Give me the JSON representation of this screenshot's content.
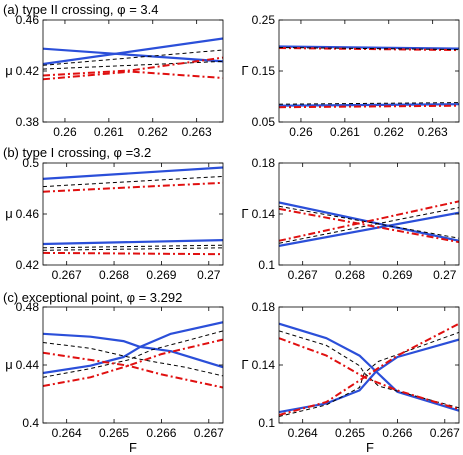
{
  "chart_data": [
    {
      "type": "line",
      "title": "(a) type II crossing, φ = 3.4",
      "xlabel": "",
      "ylabel": "μ",
      "xlim": [
        0.2595,
        0.2636
      ],
      "ylim": [
        0.38,
        0.46
      ],
      "xticks": [
        0.26,
        0.261,
        0.262,
        0.263
      ],
      "xtick_labels": [
        "0.26",
        "0.261",
        "0.262",
        "0.263"
      ],
      "yticks": [
        0.38,
        0.42,
        0.46
      ],
      "ytick_labels": [
        "0.38",
        "0.42",
        "0.46"
      ],
      "series": [
        {
          "style": "blue",
          "x": [
            0.2595,
            0.2636
          ],
          "y": [
            0.4375,
            0.4275
          ]
        },
        {
          "style": "blue",
          "x": [
            0.2595,
            0.2636
          ],
          "y": [
            0.4255,
            0.4455
          ]
        },
        {
          "style": "dash",
          "x": [
            0.2595,
            0.2636
          ],
          "y": [
            0.4245,
            0.4365
          ]
        },
        {
          "style": "dash",
          "x": [
            0.2595,
            0.2636
          ],
          "y": [
            0.4215,
            0.4275
          ]
        },
        {
          "style": "red",
          "x": [
            0.2595,
            0.2615,
            0.2636
          ],
          "y": [
            0.4135,
            0.4195,
            0.4145
          ]
        },
        {
          "style": "red",
          "x": [
            0.2595,
            0.2615,
            0.2636
          ],
          "y": [
            0.4165,
            0.4205,
            0.4305
          ]
        }
      ]
    },
    {
      "type": "line",
      "title": "",
      "xlabel": "",
      "ylabel": "Γ",
      "xlim": [
        0.2595,
        0.2636
      ],
      "ylim": [
        0.05,
        0.25
      ],
      "xticks": [
        0.26,
        0.261,
        0.262,
        0.263
      ],
      "xtick_labels": [
        "0.26",
        "0.261",
        "0.262",
        "0.263"
      ],
      "yticks": [
        0.05,
        0.15,
        0.25
      ],
      "ytick_labels": [
        "0.05",
        "0.15",
        "0.25"
      ],
      "series": [
        {
          "style": "blue",
          "x": [
            0.2595,
            0.2636
          ],
          "y": [
            0.198,
            0.194
          ]
        },
        {
          "style": "red",
          "x": [
            0.2595,
            0.2636
          ],
          "y": [
            0.195,
            0.191
          ]
        },
        {
          "style": "dash",
          "x": [
            0.2595,
            0.2636
          ],
          "y": [
            0.196,
            0.192
          ]
        },
        {
          "style": "blue",
          "x": [
            0.2595,
            0.2636
          ],
          "y": [
            0.082,
            0.085
          ]
        },
        {
          "style": "red",
          "x": [
            0.2595,
            0.2636
          ],
          "y": [
            0.079,
            0.082
          ]
        },
        {
          "style": "dash",
          "x": [
            0.2595,
            0.2636
          ],
          "y": [
            0.085,
            0.088
          ]
        }
      ]
    },
    {
      "type": "line",
      "title": "(b) type I crossing, φ =3.2",
      "xlabel": "",
      "ylabel": "μ",
      "xlim": [
        0.2665,
        0.2703
      ],
      "ylim": [
        0.42,
        0.5
      ],
      "xticks": [
        0.267,
        0.268,
        0.269,
        0.27
      ],
      "xtick_labels": [
        "0.267",
        "0.268",
        "0.269",
        "0.27"
      ],
      "yticks": [
        0.42,
        0.46,
        0.5
      ],
      "ytick_labels": [
        "0.42",
        "0.46",
        "0.5"
      ],
      "series": [
        {
          "style": "blue",
          "x": [
            0.2665,
            0.2703
          ],
          "y": [
            0.4875,
            0.4965
          ]
        },
        {
          "style": "dash",
          "x": [
            0.2665,
            0.2703
          ],
          "y": [
            0.4815,
            0.4895
          ]
        },
        {
          "style": "red",
          "x": [
            0.2665,
            0.2703
          ],
          "y": [
            0.4775,
            0.4845
          ]
        },
        {
          "style": "blue",
          "x": [
            0.2665,
            0.2703
          ],
          "y": [
            0.4365,
            0.4395
          ]
        },
        {
          "style": "dash",
          "x": [
            0.2665,
            0.2703
          ],
          "y": [
            0.4335,
            0.4355
          ]
        },
        {
          "style": "dash",
          "x": [
            0.2665,
            0.2703
          ],
          "y": [
            0.4315,
            0.4335
          ]
        },
        {
          "style": "red",
          "x": [
            0.2665,
            0.2703
          ],
          "y": [
            0.4295,
            0.4285
          ]
        }
      ]
    },
    {
      "type": "line",
      "title": "",
      "xlabel": "",
      "ylabel": "Γ",
      "xlim": [
        0.2665,
        0.2703
      ],
      "ylim": [
        0.1,
        0.18
      ],
      "xticks": [
        0.267,
        0.268,
        0.269,
        0.27
      ],
      "xtick_labels": [
        "0.267",
        "0.268",
        "0.269",
        "0.27"
      ],
      "yticks": [
        0.1,
        0.14,
        0.18
      ],
      "ytick_labels": [
        "0.1",
        "0.14",
        "0.18"
      ],
      "series": [
        {
          "style": "blue",
          "x": [
            0.2665,
            0.2703
          ],
          "y": [
            0.149,
            0.119
          ]
        },
        {
          "style": "blue",
          "x": [
            0.2665,
            0.2703
          ],
          "y": [
            0.115,
            0.141
          ]
        },
        {
          "style": "dash",
          "x": [
            0.2665,
            0.2703
          ],
          "y": [
            0.146,
            0.121
          ]
        },
        {
          "style": "dash",
          "x": [
            0.2665,
            0.2703
          ],
          "y": [
            0.117,
            0.145
          ]
        },
        {
          "style": "red",
          "x": [
            0.2665,
            0.2703
          ],
          "y": [
            0.144,
            0.118
          ]
        },
        {
          "style": "red",
          "x": [
            0.2665,
            0.2703
          ],
          "y": [
            0.119,
            0.15
          ]
        }
      ]
    },
    {
      "type": "line",
      "title": "(c) exceptional point, φ = 3.292",
      "xlabel": "F",
      "ylabel": "μ",
      "xlim": [
        0.2635,
        0.2673
      ],
      "ylim": [
        0.4,
        0.48
      ],
      "xticks": [
        0.264,
        0.265,
        0.266,
        0.267
      ],
      "xtick_labels": [
        "0.264",
        "0.265",
        "0.266",
        "0.267"
      ],
      "yticks": [
        0.4,
        0.44,
        0.48
      ],
      "ytick_labels": [
        "0.4",
        "0.44",
        "0.48"
      ],
      "series": [
        {
          "style": "blue",
          "x": [
            0.2635,
            0.2645,
            0.2652,
            0.26555,
            0.2662,
            0.2673
          ],
          "y": [
            0.4615,
            0.4595,
            0.4565,
            0.4525,
            0.4495,
            0.4385
          ]
        },
        {
          "style": "blue",
          "x": [
            0.2635,
            0.2645,
            0.2652,
            0.26555,
            0.2662,
            0.2673
          ],
          "y": [
            0.4345,
            0.4395,
            0.4455,
            0.4525,
            0.4615,
            0.4695
          ]
        },
        {
          "style": "dash",
          "x": [
            0.2635,
            0.2645,
            0.2653,
            0.2658,
            0.2665,
            0.2673
          ],
          "y": [
            0.4555,
            0.4515,
            0.4455,
            0.4425,
            0.4385,
            0.4325
          ]
        },
        {
          "style": "dash",
          "x": [
            0.2635,
            0.2645,
            0.2653,
            0.2658,
            0.2665,
            0.2673
          ],
          "y": [
            0.4315,
            0.4375,
            0.4435,
            0.4505,
            0.4565,
            0.4635
          ]
        },
        {
          "style": "red",
          "x": [
            0.2635,
            0.2645,
            0.2653,
            0.266,
            0.2673
          ],
          "y": [
            0.4485,
            0.4435,
            0.4395,
            0.4335,
            0.4245
          ]
        },
        {
          "style": "red",
          "x": [
            0.2635,
            0.2645,
            0.2653,
            0.266,
            0.2673
          ],
          "y": [
            0.4255,
            0.4315,
            0.4395,
            0.4475,
            0.4575
          ]
        }
      ]
    },
    {
      "type": "line",
      "title": "",
      "xlabel": "F",
      "ylabel": "Γ",
      "xlim": [
        0.2635,
        0.2673
      ],
      "ylim": [
        0.1,
        0.18
      ],
      "xticks": [
        0.264,
        0.265,
        0.266,
        0.267
      ],
      "xtick_labels": [
        "0.264",
        "0.265",
        "0.266",
        "0.267"
      ],
      "yticks": [
        0.1,
        0.14,
        0.18
      ],
      "ytick_labels": [
        "0.1",
        "0.14",
        "0.18"
      ],
      "series": [
        {
          "style": "blue",
          "x": [
            0.2635,
            0.2645,
            0.2652,
            0.26555,
            0.266,
            0.2673
          ],
          "y": [
            0.1685,
            0.1585,
            0.1465,
            0.1355,
            0.1215,
            0.1085
          ]
        },
        {
          "style": "blue",
          "x": [
            0.2635,
            0.2645,
            0.2652,
            0.26555,
            0.266,
            0.2673
          ],
          "y": [
            0.1075,
            0.1135,
            0.1225,
            0.1355,
            0.1455,
            0.1575
          ]
        },
        {
          "style": "dash",
          "x": [
            0.2635,
            0.2645,
            0.2652,
            0.2653,
            0.2656,
            0.2673
          ],
          "y": [
            0.1635,
            0.1535,
            0.1395,
            0.1345,
            0.1255,
            0.1105
          ]
        },
        {
          "style": "dash",
          "x": [
            0.2635,
            0.2645,
            0.2652,
            0.2653,
            0.2656,
            0.2673
          ],
          "y": [
            0.1045,
            0.1125,
            0.1245,
            0.1345,
            0.1425,
            0.1625
          ]
        },
        {
          "style": "red",
          "x": [
            0.2635,
            0.2645,
            0.2653,
            0.266,
            0.2673
          ],
          "y": [
            0.1585,
            0.1465,
            0.1315,
            0.1225,
            0.1095
          ]
        },
        {
          "style": "red",
          "x": [
            0.2635,
            0.2645,
            0.2653,
            0.266,
            0.2673
          ],
          "y": [
            0.1055,
            0.1145,
            0.1315,
            0.1465,
            0.1685
          ]
        }
      ]
    }
  ],
  "colors": {
    "blue": "#2b4fd9",
    "red": "#e01010",
    "dash": "#000000",
    "axis": "#000000"
  }
}
